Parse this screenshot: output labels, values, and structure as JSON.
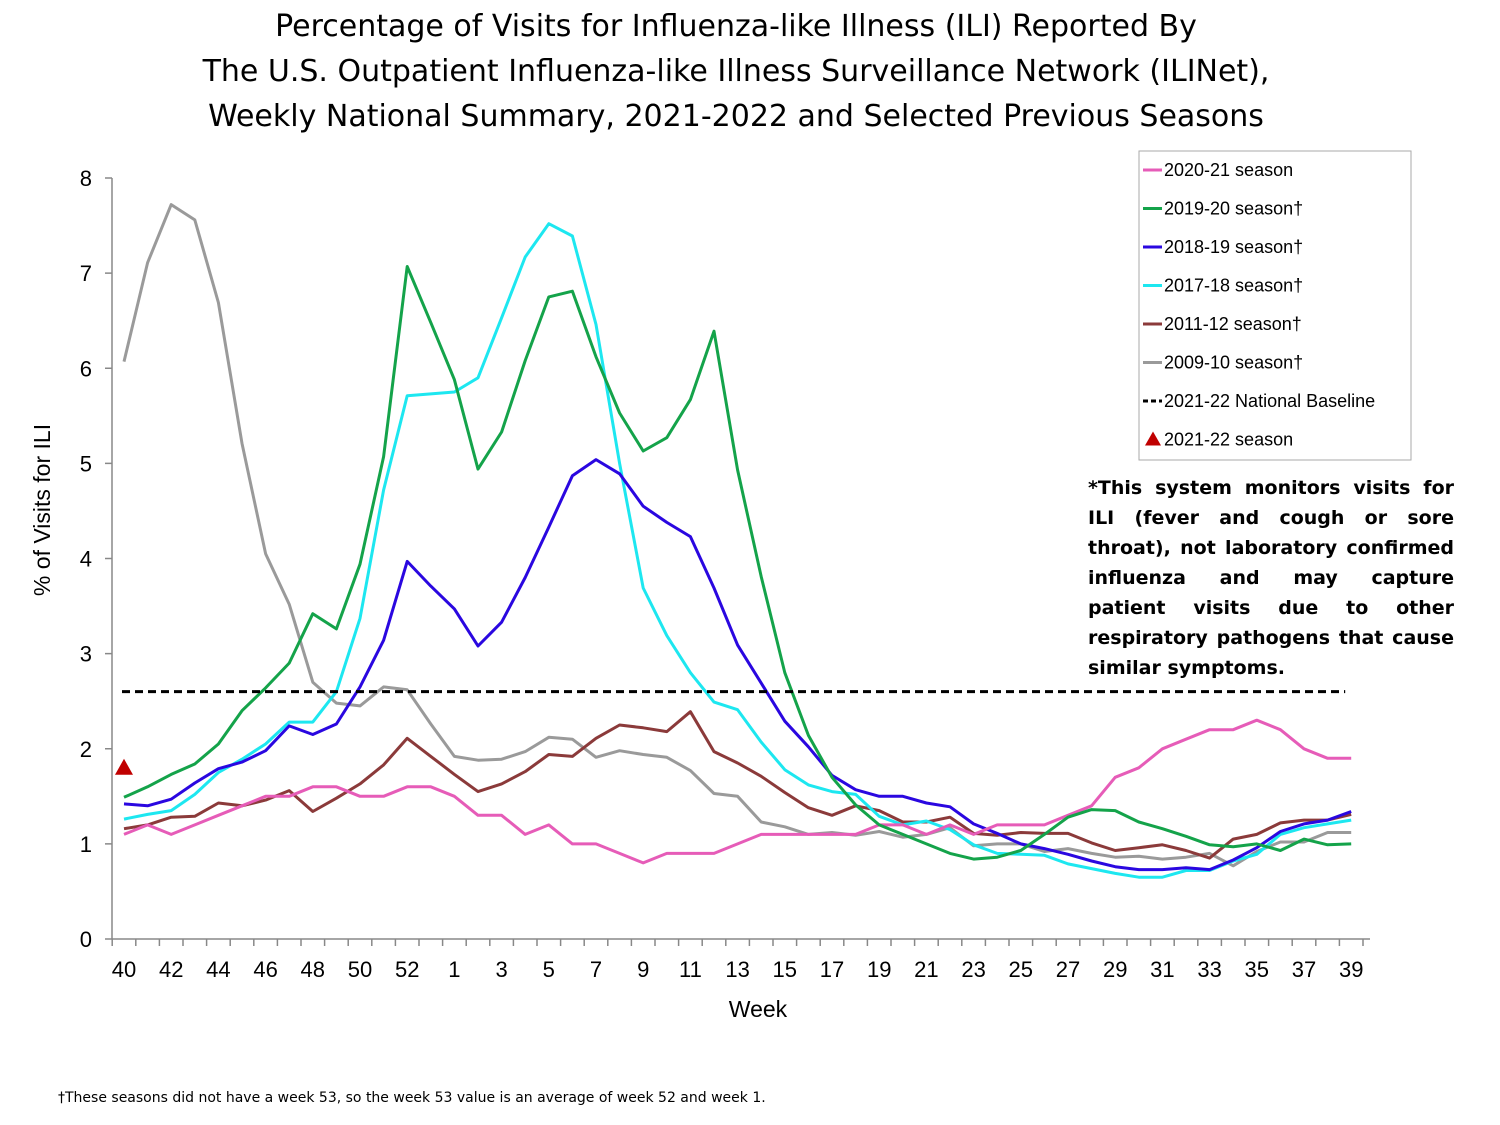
{
  "chart_data": {
    "type": "line",
    "title": [
      "Percentage of Visits for Influenza-like Illness (ILI) Reported By",
      "The U.S. Outpatient Influenza-like Illness Surveillance Network (ILINet),",
      "Weekly National Summary, 2021-2022 and Selected Previous Seasons"
    ],
    "xlabel": "Week",
    "ylabel": "% of Visits for ILI",
    "ylim": [
      0,
      8
    ],
    "y_ticks": [
      "0",
      "1",
      "2",
      "3",
      "4",
      "5",
      "6",
      "7",
      "8"
    ],
    "weeks": [
      40,
      41,
      42,
      43,
      44,
      45,
      46,
      47,
      48,
      49,
      50,
      51,
      52,
      53,
      1,
      2,
      3,
      4,
      5,
      6,
      7,
      8,
      9,
      10,
      11,
      12,
      13,
      14,
      15,
      16,
      17,
      18,
      19,
      20,
      21,
      22,
      23,
      24,
      25,
      26,
      27,
      28,
      29,
      30,
      31,
      32,
      33,
      34,
      35,
      36,
      37,
      38,
      39
    ],
    "x_tick_labels": [
      "40",
      "42",
      "44",
      "46",
      "48",
      "50",
      "52",
      "1",
      "3",
      "5",
      "7",
      "9",
      "11",
      "13",
      "15",
      "17",
      "19",
      "21",
      "23",
      "25",
      "27",
      "29",
      "31",
      "33",
      "35",
      "37",
      "39"
    ],
    "grid": false,
    "legend_position": "top-right",
    "series": [
      {
        "name": "2020-21 season",
        "color": "#e65cb8",
        "values": [
          1.1,
          1.2,
          1.1,
          1.2,
          1.3,
          1.4,
          1.5,
          1.5,
          1.6,
          1.6,
          1.5,
          1.5,
          1.6,
          1.6,
          1.5,
          1.3,
          1.3,
          1.1,
          1.2,
          1.0,
          1.0,
          0.9,
          0.8,
          0.9,
          0.9,
          0.9,
          1.0,
          1.1,
          1.1,
          1.1,
          1.1,
          1.1,
          1.2,
          1.2,
          1.1,
          1.2,
          1.1,
          1.2,
          1.2,
          1.2,
          1.3,
          1.4,
          1.7,
          1.8,
          2.0,
          2.1,
          2.2,
          2.2,
          2.3,
          2.2,
          2.0,
          1.9,
          1.9
        ]
      },
      {
        "name": "2019-20 season†",
        "color": "#14a34a",
        "values": [
          1.49,
          1.6,
          1.73,
          1.84,
          2.05,
          2.4,
          2.64,
          2.9,
          3.42,
          3.26,
          3.94,
          5.07,
          7.07,
          6.48,
          5.88,
          4.94,
          5.33,
          6.08,
          6.75,
          6.81,
          6.12,
          5.53,
          5.13,
          5.27,
          5.67,
          6.39,
          4.93,
          3.81,
          2.8,
          2.14,
          1.7,
          1.41,
          1.2,
          1.1,
          1.0,
          0.9,
          0.84,
          0.86,
          0.93,
          1.1,
          1.28,
          1.36,
          1.35,
          1.23,
          1.16,
          1.08,
          0.99,
          0.97,
          1.0,
          0.93,
          1.05,
          0.99,
          1.0
        ]
      },
      {
        "name": "2018-19 season†",
        "color": "#2a07e0",
        "values": [
          1.42,
          1.4,
          1.47,
          1.64,
          1.79,
          1.86,
          1.98,
          2.24,
          2.15,
          2.26,
          2.65,
          3.14,
          3.97,
          3.71,
          3.47,
          3.08,
          3.33,
          3.8,
          4.33,
          4.87,
          5.04,
          4.89,
          4.55,
          4.38,
          4.23,
          3.69,
          3.09,
          2.69,
          2.29,
          2.02,
          1.72,
          1.57,
          1.5,
          1.5,
          1.43,
          1.39,
          1.21,
          1.11,
          1.0,
          0.95,
          0.89,
          0.82,
          0.76,
          0.73,
          0.73,
          0.75,
          0.73,
          0.83,
          0.96,
          1.13,
          1.21,
          1.25,
          1.34
        ]
      },
      {
        "name": "2017-18 season†",
        "color": "#1de7f0",
        "values": [
          1.26,
          1.31,
          1.35,
          1.52,
          1.75,
          1.89,
          2.05,
          2.28,
          2.28,
          2.6,
          3.37,
          4.72,
          5.71,
          5.73,
          5.75,
          5.9,
          6.53,
          7.17,
          7.52,
          7.39,
          6.46,
          5.0,
          3.69,
          3.19,
          2.8,
          2.49,
          2.41,
          2.07,
          1.78,
          1.62,
          1.55,
          1.52,
          1.29,
          1.2,
          1.24,
          1.15,
          0.99,
          0.9,
          0.89,
          0.88,
          0.79,
          0.74,
          0.69,
          0.65,
          0.65,
          0.72,
          0.72,
          0.82,
          0.89,
          1.1,
          1.17,
          1.21,
          1.25
        ]
      },
      {
        "name": "2011-12 season†",
        "color": "#8b3a3a",
        "values": [
          1.16,
          1.2,
          1.28,
          1.29,
          1.43,
          1.4,
          1.46,
          1.56,
          1.34,
          1.48,
          1.63,
          1.83,
          2.11,
          1.92,
          1.73,
          1.55,
          1.63,
          1.76,
          1.94,
          1.92,
          2.11,
          2.25,
          2.22,
          2.18,
          2.39,
          1.97,
          1.85,
          1.71,
          1.54,
          1.38,
          1.3,
          1.4,
          1.35,
          1.23,
          1.23,
          1.28,
          1.11,
          1.09,
          1.12,
          1.11,
          1.11,
          1.01,
          0.93,
          0.96,
          0.99,
          0.93,
          0.85,
          1.05,
          1.1,
          1.22,
          1.25,
          1.25,
          1.31
        ]
      },
      {
        "name": "2009-10 season†",
        "color": "#9a9a9a",
        "values": [
          6.07,
          7.11,
          7.72,
          7.56,
          6.69,
          5.21,
          4.05,
          3.52,
          2.7,
          2.48,
          2.45,
          2.65,
          2.62,
          2.26,
          1.92,
          1.88,
          1.89,
          1.97,
          2.12,
          2.1,
          1.91,
          1.98,
          1.94,
          1.91,
          1.77,
          1.53,
          1.5,
          1.23,
          1.18,
          1.1,
          1.12,
          1.09,
          1.13,
          1.07,
          1.1,
          1.17,
          0.98,
          1.0,
          1.0,
          0.92,
          0.95,
          0.9,
          0.86,
          0.87,
          0.84,
          0.86,
          0.9,
          0.77,
          0.92,
          1.02,
          1.02,
          1.12,
          1.12
        ]
      },
      {
        "name": "2021-22 National Baseline",
        "color": "#000000",
        "style": "dashed",
        "values": [
          2.6,
          2.6,
          2.6,
          2.6,
          2.6,
          2.6,
          2.6,
          2.6,
          2.6,
          2.6,
          2.6,
          2.6,
          2.6,
          2.6,
          2.6,
          2.6,
          2.6,
          2.6,
          2.6,
          2.6,
          2.6,
          2.6,
          2.6,
          2.6,
          2.6,
          2.6,
          2.6,
          2.6,
          2.6,
          2.6,
          2.6,
          2.6,
          2.6,
          2.6,
          2.6,
          2.6,
          2.6,
          2.6,
          2.6,
          2.6,
          2.6,
          2.6,
          2.6,
          2.6,
          2.6,
          2.6,
          2.6,
          2.6,
          2.6,
          2.6,
          2.6,
          2.6,
          2.6
        ]
      },
      {
        "name": "2021-22 season",
        "color": "#c00000",
        "style": "triangle-marker",
        "values": [
          1.8
        ]
      }
    ]
  },
  "annotation": "*This system monitors visits for ILI (fever and cough or sore throat), not laboratory confirmed influenza and may capture patient visits due to other respiratory pathogens that cause similar symptoms.",
  "footnote": "†These seasons did not have a week 53, so the week 53 value is an average of week 52 and week 1."
}
